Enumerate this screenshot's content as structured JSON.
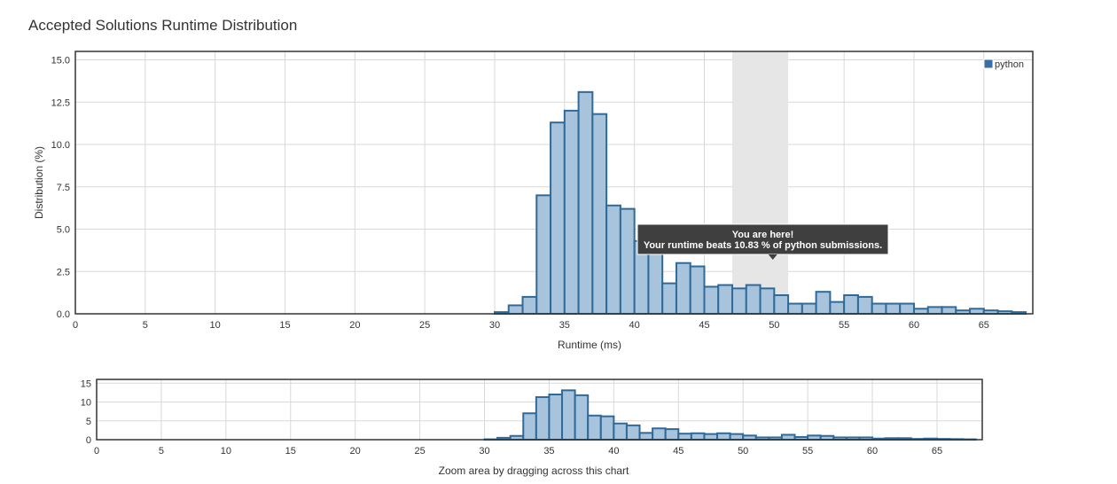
{
  "page": {
    "title": "Accepted Solutions Runtime Distribution",
    "zoom_hint": "Zoom area by dragging across this chart"
  },
  "colors": {
    "bar_fill": "#a8c4dc",
    "bar_stroke": "#2f6a98",
    "highlight": "#e6e6e6",
    "tooltip_bg": "#3f3f3f",
    "legend_swatch": "#3a6fa5"
  },
  "chart_data": [
    {
      "type": "bar",
      "role": "main",
      "xlabel": "Runtime (ms)",
      "ylabel": "Distribution (%)",
      "xlim": [
        0,
        68.5
      ],
      "ylim": [
        0,
        15.5
      ],
      "x_ticks": [
        0,
        5,
        10,
        15,
        20,
        25,
        30,
        35,
        40,
        45,
        50,
        55,
        60,
        65
      ],
      "y_ticks": [
        "0.0",
        "2.5",
        "5.0",
        "7.5",
        "10.0",
        "12.5",
        "15.0"
      ],
      "legend": {
        "label": "python",
        "position": "top-right"
      },
      "grid": true,
      "bin_width": 1,
      "x": [
        30,
        31,
        32,
        33,
        34,
        35,
        36,
        37,
        38,
        39,
        40,
        41,
        42,
        43,
        44,
        45,
        46,
        47,
        48,
        49,
        50,
        51,
        52,
        53,
        54,
        55,
        56,
        57,
        58,
        59,
        60,
        61,
        62,
        63,
        64,
        65,
        66,
        67
      ],
      "values": [
        0.1,
        0.5,
        1.0,
        7.0,
        11.3,
        12.0,
        13.1,
        11.8,
        6.4,
        6.2,
        4.3,
        3.8,
        1.8,
        3.0,
        2.8,
        1.6,
        1.7,
        1.5,
        1.7,
        1.5,
        1.1,
        0.6,
        0.6,
        1.3,
        0.7,
        1.1,
        1.0,
        0.6,
        0.6,
        0.6,
        0.3,
        0.4,
        0.4,
        0.2,
        0.3,
        0.2,
        0.15,
        0.1
      ],
      "highlight_range": [
        47,
        51
      ],
      "annotation": {
        "line1": "You are here!",
        "line2": "Your runtime beats 10.83 % of python submissions.",
        "x": 49.9
      }
    },
    {
      "type": "bar",
      "role": "navigator",
      "xlim": [
        0,
        68.5
      ],
      "ylim": [
        0,
        16
      ],
      "x_ticks": [
        0,
        5,
        10,
        15,
        20,
        25,
        30,
        35,
        40,
        45,
        50,
        55,
        60,
        65
      ],
      "y_ticks": [
        "0",
        "5",
        "10",
        "15"
      ],
      "grid": true,
      "bin_width": 1,
      "x": [
        30,
        31,
        32,
        33,
        34,
        35,
        36,
        37,
        38,
        39,
        40,
        41,
        42,
        43,
        44,
        45,
        46,
        47,
        48,
        49,
        50,
        51,
        52,
        53,
        54,
        55,
        56,
        57,
        58,
        59,
        60,
        61,
        62,
        63,
        64,
        65,
        66,
        67
      ],
      "values": [
        0.1,
        0.5,
        1.0,
        7.0,
        11.3,
        12.0,
        13.1,
        11.8,
        6.4,
        6.2,
        4.3,
        3.8,
        1.8,
        3.0,
        2.8,
        1.6,
        1.7,
        1.5,
        1.7,
        1.5,
        1.1,
        0.6,
        0.6,
        1.3,
        0.7,
        1.1,
        1.0,
        0.6,
        0.6,
        0.6,
        0.3,
        0.4,
        0.4,
        0.2,
        0.3,
        0.2,
        0.15,
        0.1
      ]
    }
  ]
}
